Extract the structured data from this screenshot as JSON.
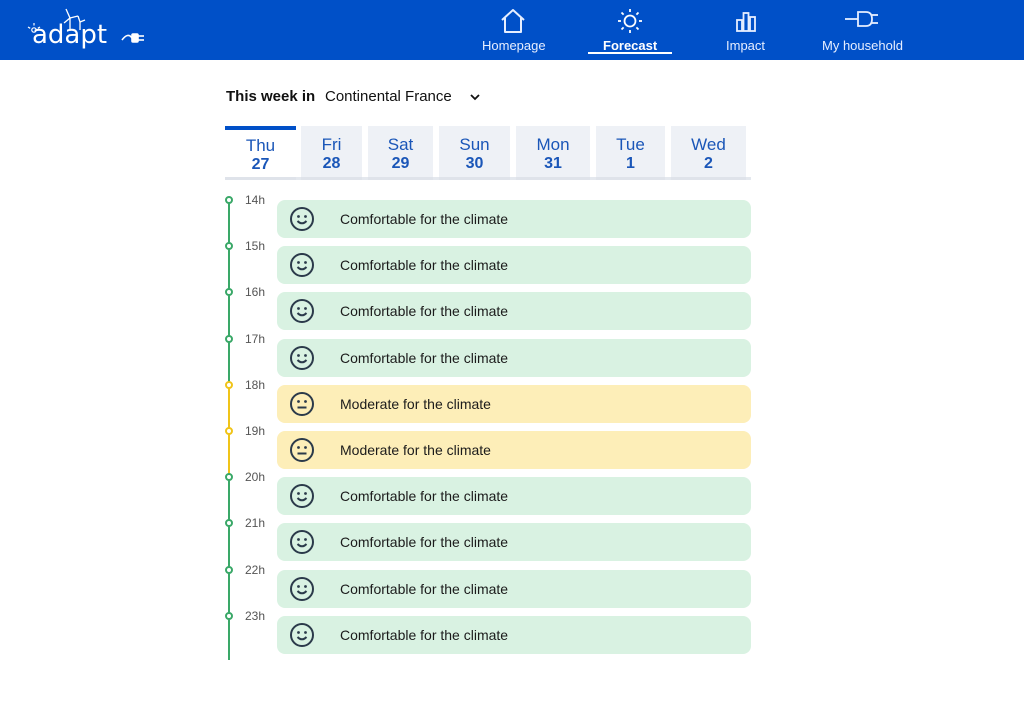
{
  "header": {
    "logo_text": "adapt",
    "nav": [
      {
        "label": "Homepage",
        "icon": "home-icon",
        "active": false
      },
      {
        "label": "Forecast",
        "icon": "sun-icon",
        "active": true
      },
      {
        "label": "Impact",
        "icon": "bar-chart-icon",
        "active": false
      },
      {
        "label": "My household",
        "icon": "plug-icon",
        "active": false
      }
    ]
  },
  "location": {
    "label": "This week in",
    "selected": "Continental France"
  },
  "days": [
    {
      "name": "Thu",
      "num": "27",
      "active": true
    },
    {
      "name": "Fri",
      "num": "28",
      "active": false
    },
    {
      "name": "Sat",
      "num": "29",
      "active": false
    },
    {
      "name": "Sun",
      "num": "30",
      "active": false
    },
    {
      "name": "Mon",
      "num": "31",
      "active": false
    },
    {
      "name": "Tue",
      "num": "1",
      "active": false
    },
    {
      "name": "Wed",
      "num": "2",
      "active": false
    }
  ],
  "slots": [
    {
      "hour": "14h",
      "status": "comfortable",
      "text": "Comfortable for the climate"
    },
    {
      "hour": "15h",
      "status": "comfortable",
      "text": "Comfortable for the climate"
    },
    {
      "hour": "16h",
      "status": "comfortable",
      "text": "Comfortable for the climate"
    },
    {
      "hour": "17h",
      "status": "comfortable",
      "text": "Comfortable for the climate"
    },
    {
      "hour": "18h",
      "status": "moderate",
      "text": "Moderate for the climate"
    },
    {
      "hour": "19h",
      "status": "moderate",
      "text": "Moderate for the climate"
    },
    {
      "hour": "20h",
      "status": "comfortable",
      "text": "Comfortable for the climate"
    },
    {
      "hour": "21h",
      "status": "comfortable",
      "text": "Comfortable for the climate"
    },
    {
      "hour": "22h",
      "status": "comfortable",
      "text": "Comfortable for the climate"
    },
    {
      "hour": "23h",
      "status": "comfortable",
      "text": "Comfortable for the climate"
    }
  ],
  "colors": {
    "brand": "#0050c8",
    "comfortable": "#d9f2e2",
    "moderate": "#fdeeb8",
    "timeline_green": "#3aa868",
    "timeline_yellow": "#f0c419"
  }
}
